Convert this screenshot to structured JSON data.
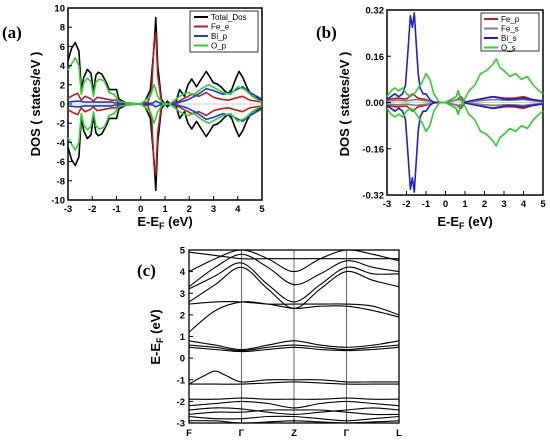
{
  "chart_data": [
    {
      "panel": "(a)",
      "type": "line",
      "xlabel_main": "E-E",
      "xlabel_sub": "F",
      "xlabel_unit": " (eV)",
      "ylabel": "DOS ( states/eV )",
      "xlim": [
        -3,
        5
      ],
      "ylim": [
        -10,
        10
      ],
      "xticks": [
        -3,
        -2,
        -1,
        0,
        1,
        2,
        3,
        4,
        5
      ],
      "yticks": [
        -10,
        -8,
        -6,
        -4,
        -2,
        0,
        2,
        4,
        6,
        8,
        10
      ],
      "legend_position": "top-right",
      "series": [
        {
          "name": "Total_Dos",
          "color": "#000000",
          "x": [
            -3.0,
            -2.85,
            -2.7,
            -2.55,
            -2.45,
            -2.35,
            -2.2,
            -2.05,
            -1.95,
            -1.85,
            -1.75,
            -1.6,
            -1.45,
            -1.3,
            -1.15,
            -1.0,
            -0.9,
            -0.6,
            -0.3,
            0.0,
            0.2,
            0.4,
            0.55,
            0.62,
            0.7,
            0.85,
            1.0,
            1.1,
            1.2,
            1.3,
            1.45,
            1.6,
            1.8,
            1.95,
            2.1,
            2.3,
            2.5,
            2.7,
            2.85,
            3.0,
            3.15,
            3.3,
            3.45,
            3.6,
            3.75,
            3.9,
            4.05,
            4.2,
            4.4,
            4.6,
            4.8,
            5.0
          ],
          "y": [
            4.5,
            5.8,
            6.4,
            5.5,
            1.5,
            2.8,
            3.6,
            3.2,
            1.2,
            3.0,
            3.3,
            3.1,
            2.4,
            1.5,
            1.5,
            1.5,
            0.5,
            0.1,
            0.05,
            0.0,
            0.4,
            1.5,
            6.0,
            9.0,
            4.0,
            0.5,
            0.0,
            0.3,
            0.0,
            0.0,
            0.2,
            1.5,
            0.8,
            2.0,
            2.6,
            1.8,
            2.6,
            3.4,
            2.8,
            2.2,
            2.1,
            1.8,
            1.4,
            1.1,
            1.5,
            2.5,
            3.4,
            2.8,
            1.6,
            0.8,
            0.6,
            0.3
          ]
        },
        {
          "name": "Fe_e",
          "color": "#b22222",
          "x": [
            -3.0,
            -2.8,
            -2.6,
            -2.45,
            -2.3,
            -2.1,
            -1.95,
            -1.8,
            -1.6,
            -1.4,
            -1.2,
            -1.0,
            -0.9,
            -0.5,
            0.0,
            0.3,
            0.45,
            0.55,
            0.62,
            0.7,
            0.85,
            1.0,
            1.5,
            1.8,
            2.1,
            2.4,
            2.7,
            3.0,
            3.3,
            3.6,
            3.9,
            4.2,
            4.5,
            5.0
          ],
          "y": [
            0.6,
            0.9,
            1.1,
            0.4,
            0.8,
            0.6,
            0.3,
            0.7,
            0.6,
            0.5,
            0.4,
            0.4,
            0.1,
            0.0,
            0.0,
            0.2,
            1.5,
            6.5,
            7.4,
            3.0,
            0.2,
            0.0,
            0.2,
            0.6,
            1.0,
            0.8,
            1.2,
            0.7,
            0.5,
            0.4,
            0.6,
            0.8,
            0.4,
            0.2
          ]
        },
        {
          "name": "Bi_p",
          "color": "#1e3cc8",
          "x": [
            -3.0,
            -2.6,
            -2.3,
            -2.0,
            -1.6,
            -1.2,
            -0.9,
            -0.5,
            0.0,
            0.5,
            0.62,
            0.8,
            1.0,
            1.5,
            1.9,
            2.3,
            2.7,
            3.0,
            3.4,
            3.8,
            4.2,
            4.5,
            5.0
          ],
          "y": [
            0.2,
            0.3,
            0.2,
            0.2,
            0.2,
            0.2,
            0.05,
            0.0,
            0.0,
            0.1,
            0.3,
            0.1,
            0.0,
            0.1,
            0.4,
            0.9,
            1.6,
            1.4,
            1.0,
            1.3,
            1.8,
            1.2,
            0.5
          ]
        },
        {
          "name": "O_p",
          "color": "#33cc33",
          "x": [
            -3.0,
            -2.85,
            -2.7,
            -2.55,
            -2.45,
            -2.35,
            -2.2,
            -2.05,
            -1.95,
            -1.85,
            -1.7,
            -1.5,
            -1.3,
            -1.1,
            -0.9,
            -0.5,
            0.0,
            0.4,
            0.55,
            0.62,
            0.7,
            0.9,
            1.2,
            1.6,
            1.9,
            2.2,
            2.5,
            2.8,
            3.1,
            3.4,
            3.7,
            4.0,
            4.3,
            4.6,
            5.0
          ],
          "y": [
            3.5,
            4.2,
            4.8,
            4.0,
            1.0,
            2.2,
            2.7,
            2.3,
            0.8,
            2.3,
            2.6,
            2.4,
            1.2,
            1.0,
            0.3,
            0.05,
            0.0,
            0.8,
            2.0,
            1.5,
            0.8,
            0.1,
            0.0,
            0.8,
            1.2,
            1.0,
            1.6,
            2.0,
            1.6,
            1.2,
            1.0,
            1.8,
            1.5,
            0.8,
            0.2
          ]
        }
      ]
    },
    {
      "panel": "(b)",
      "type": "line",
      "xlabel_main": "E-E",
      "xlabel_sub": "F",
      "xlabel_unit": " (eV)",
      "ylabel": "DOS ( states/eV )",
      "xlim": [
        -3,
        5
      ],
      "ylim": [
        -0.32,
        0.32
      ],
      "xticks": [
        -3,
        -2,
        -1,
        0,
        1,
        2,
        3,
        4,
        5
      ],
      "yticks": [
        -0.32,
        -0.16,
        0.0,
        0.16,
        0.32
      ],
      "ytick_labels": [
        "-0.32",
        "-0.16",
        "0.00",
        "0.16",
        "0.32"
      ],
      "legend_position": "top-right",
      "series": [
        {
          "name": "Fe_p",
          "color": "#b22222",
          "x": [
            -3.0,
            -2.5,
            -2.0,
            -1.7,
            -1.4,
            -1.0,
            -0.8,
            -0.4,
            0.0,
            0.6,
            0.8,
            1.0,
            1.5,
            2.0,
            2.5,
            3.0,
            3.5,
            4.0,
            4.5,
            5.0
          ],
          "y": [
            0.01,
            0.015,
            0.012,
            0.03,
            0.015,
            0.01,
            0.005,
            0.0,
            0.0,
            0.01,
            0.02,
            0.0,
            0.005,
            0.015,
            0.02,
            0.015,
            0.015,
            0.02,
            0.01,
            0.005
          ]
        },
        {
          "name": "Fe_s",
          "color": "#808080",
          "x": [
            -3.0,
            -2.5,
            -2.0,
            -1.5,
            -1.0,
            -0.5,
            0.0,
            0.7,
            1.0,
            1.5,
            2.0,
            2.5,
            3.0,
            3.5,
            4.0,
            4.5,
            5.0
          ],
          "y": [
            0.005,
            0.008,
            0.006,
            0.01,
            0.006,
            0.0,
            0.0,
            0.01,
            0.0,
            0.004,
            0.008,
            0.01,
            0.008,
            0.008,
            0.01,
            0.006,
            0.003
          ]
        },
        {
          "name": "Bi_s",
          "color": "#2020c8",
          "x": [
            -3.0,
            -2.8,
            -2.6,
            -2.4,
            -2.2,
            -2.05,
            -1.9,
            -1.8,
            -1.7,
            -1.6,
            -1.5,
            -1.4,
            -1.3,
            -1.15,
            -1.0,
            -0.8,
            -0.6,
            -0.3,
            0.0,
            0.55,
            0.65,
            0.75,
            0.9,
            1.2,
            1.6,
            2.0,
            2.4,
            2.8,
            3.2,
            3.6,
            4.0,
            4.4,
            5.0
          ],
          "y": [
            0.01,
            0.02,
            0.03,
            0.02,
            0.03,
            0.06,
            0.2,
            0.3,
            0.26,
            0.31,
            0.2,
            0.1,
            0.05,
            0.03,
            0.03,
            0.01,
            0.0,
            0.0,
            0.0,
            0.02,
            0.04,
            0.02,
            0.0,
            0.005,
            0.01,
            0.015,
            0.02,
            0.015,
            0.01,
            0.012,
            0.015,
            0.01,
            0.005
          ]
        },
        {
          "name": "O_s",
          "color": "#33cc33",
          "x": [
            -3.0,
            -2.8,
            -2.6,
            -2.4,
            -2.2,
            -2.0,
            -1.8,
            -1.6,
            -1.4,
            -1.2,
            -1.0,
            -0.8,
            -0.6,
            -0.3,
            0.0,
            0.55,
            0.65,
            0.75,
            0.9,
            1.2,
            1.5,
            1.8,
            2.1,
            2.4,
            2.6,
            2.8,
            3.0,
            3.3,
            3.6,
            3.9,
            4.2,
            4.5,
            4.8,
            5.0
          ],
          "y": [
            0.02,
            0.04,
            0.05,
            0.04,
            0.05,
            0.03,
            0.02,
            0.03,
            0.05,
            0.07,
            0.1,
            0.08,
            0.03,
            0.0,
            0.0,
            0.02,
            0.04,
            0.02,
            0.0,
            0.04,
            0.06,
            0.1,
            0.11,
            0.13,
            0.15,
            0.12,
            0.11,
            0.09,
            0.1,
            0.08,
            0.09,
            0.06,
            0.04,
            0.03
          ]
        }
      ]
    },
    {
      "panel": "(c)",
      "type": "line",
      "ylabel_main": "E-E",
      "ylabel_sub": "F",
      "ylabel_unit": " (eV)",
      "ylim": [
        -3,
        5
      ],
      "yticks": [
        -3,
        -2,
        -1,
        0,
        1,
        2,
        3,
        4,
        5
      ],
      "kpoint_labels": [
        "F",
        "Γ",
        "Z",
        "Γ",
        "L"
      ],
      "kpoints": [
        0,
        1,
        2,
        3,
        4
      ],
      "bands": [
        {
          "x": [
            0,
            0.5,
            1,
            1.5,
            2,
            2.5,
            3,
            3.5,
            4
          ],
          "y": [
            4.9,
            4.75,
            4.6,
            4.6,
            4.6,
            4.6,
            4.6,
            4.6,
            4.6
          ]
        },
        {
          "x": [
            0,
            0.5,
            1,
            1.5,
            2,
            2.5,
            3,
            3.5,
            4
          ],
          "y": [
            4.0,
            4.6,
            5.0,
            4.6,
            4.0,
            4.6,
            5.0,
            4.8,
            4.5
          ]
        },
        {
          "x": [
            0,
            0.5,
            1,
            1.5,
            2,
            2.5,
            3,
            3.5,
            4
          ],
          "y": [
            3.3,
            4.2,
            4.8,
            4.2,
            3.4,
            3.9,
            4.5,
            4.2,
            4.0
          ]
        },
        {
          "x": [
            0,
            0.5,
            1,
            1.5,
            2,
            2.5,
            3,
            3.5,
            4
          ],
          "y": [
            3.2,
            3.8,
            4.4,
            3.4,
            2.6,
            3.4,
            4.2,
            3.9,
            3.9
          ]
        },
        {
          "x": [
            0,
            0.5,
            1,
            1.5,
            2,
            2.5,
            3,
            3.5,
            4
          ],
          "y": [
            2.6,
            3.4,
            4.2,
            3.2,
            2.3,
            3.2,
            4.0,
            3.6,
            3.3
          ]
        },
        {
          "x": [
            0,
            0.5,
            1,
            1.5,
            2,
            2.5,
            3,
            3.5,
            4
          ],
          "y": [
            2.5,
            2.6,
            2.6,
            2.5,
            2.5,
            2.5,
            2.5,
            2.4,
            2.0
          ]
        },
        {
          "x": [
            0,
            0.5,
            1,
            1.5,
            2,
            2.5,
            3,
            3.5,
            4
          ],
          "y": [
            1.2,
            2.2,
            2.6,
            2.5,
            2.3,
            2.4,
            2.4,
            2.2,
            1.9
          ]
        },
        {
          "x": [
            0,
            0.5,
            1,
            1.5,
            2,
            2.5,
            3,
            3.5,
            4
          ],
          "y": [
            0.8,
            0.6,
            0.4,
            0.6,
            0.8,
            0.6,
            0.5,
            0.6,
            0.8
          ]
        },
        {
          "x": [
            0,
            0.5,
            1,
            1.5,
            2,
            2.5,
            3,
            3.5,
            4
          ],
          "y": [
            0.6,
            0.5,
            0.35,
            0.5,
            0.6,
            0.5,
            0.4,
            0.5,
            0.6
          ]
        },
        {
          "x": [
            0,
            0.5,
            1,
            1.5,
            2,
            2.5,
            3,
            3.5,
            4
          ],
          "y": [
            0.5,
            0.4,
            0.3,
            0.4,
            0.5,
            0.4,
            0.35,
            0.4,
            0.5
          ]
        },
        {
          "x": [
            0,
            0.3,
            0.5,
            0.7,
            1,
            1.5,
            2,
            2.5,
            3,
            3.5,
            4
          ],
          "y": [
            -1.2,
            -0.8,
            -0.6,
            -0.8,
            -1.1,
            -1.0,
            -1.0,
            -1.0,
            -1.1,
            -1.1,
            -1.1
          ]
        },
        {
          "x": [
            0,
            0.5,
            1,
            1.5,
            2,
            2.5,
            3,
            3.5,
            4
          ],
          "y": [
            -1.2,
            -1.2,
            -1.2,
            -1.15,
            -1.1,
            -1.15,
            -1.2,
            -1.2,
            -1.2
          ]
        },
        {
          "x": [
            0,
            0.5,
            1,
            1.5,
            2,
            2.5,
            3,
            3.5,
            4
          ],
          "y": [
            -1.9,
            -1.9,
            -1.85,
            -1.9,
            -1.9,
            -1.9,
            -1.85,
            -1.9,
            -1.9
          ]
        },
        {
          "x": [
            0,
            0.5,
            1,
            1.5,
            2,
            2.5,
            3,
            3.5,
            4
          ],
          "y": [
            -2.2,
            -2.1,
            -2.0,
            -2.1,
            -2.3,
            -2.1,
            -2.0,
            -2.1,
            -2.2
          ]
        },
        {
          "x": [
            0,
            0.5,
            1,
            1.5,
            2,
            2.5,
            3,
            3.5,
            4
          ],
          "y": [
            -2.4,
            -2.3,
            -2.35,
            -2.5,
            -2.6,
            -2.5,
            -2.4,
            -2.3,
            -2.4
          ]
        },
        {
          "x": [
            0,
            0.5,
            1,
            1.5,
            2,
            2.5,
            3,
            3.5,
            4
          ],
          "y": [
            -2.6,
            -2.5,
            -2.5,
            -2.4,
            -2.4,
            -2.4,
            -2.5,
            -2.6,
            -2.6
          ]
        },
        {
          "x": [
            0,
            0.5,
            1,
            1.5,
            2,
            2.5,
            3,
            3.5,
            4
          ],
          "y": [
            -2.7,
            -2.8,
            -2.8,
            -2.7,
            -2.7,
            -2.8,
            -2.9,
            -2.8,
            -2.7
          ]
        },
        {
          "x": [
            0,
            0.5,
            1,
            1.5,
            2,
            2.5,
            3,
            3.5,
            4
          ],
          "y": [
            -2.9,
            -2.9,
            -3.0,
            -2.95,
            -2.9,
            -2.95,
            -3.0,
            -2.95,
            -2.9
          ]
        }
      ]
    }
  ]
}
